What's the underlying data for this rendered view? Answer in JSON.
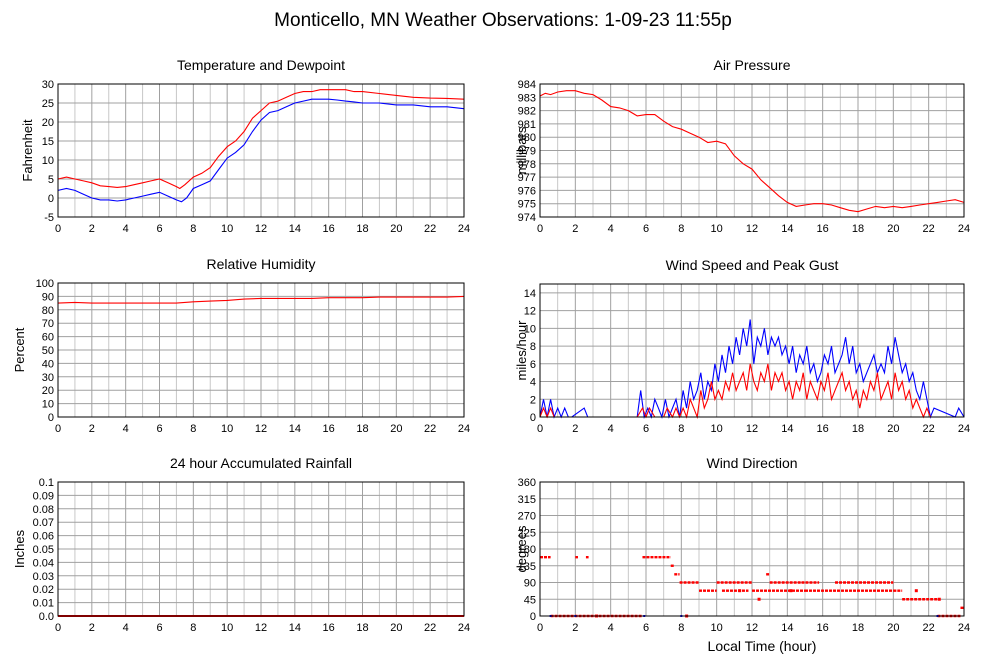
{
  "title": "Monticello, MN Weather Observations: 1-09-23 11:55p",
  "x_axis_label": "Local Time (hour)",
  "colors": {
    "red": "#ff0000",
    "blue": "#0000ff",
    "grid": "#a0a0a0",
    "frame": "#000000"
  },
  "chart_data": [
    {
      "id": "temp",
      "type": "line",
      "title": "Temperature and Dewpoint",
      "xlabel": "",
      "ylabel": "Fahrenheit",
      "xlim": [
        0,
        24
      ],
      "ylim": [
        -5,
        30
      ],
      "xticks": [
        0,
        2,
        4,
        6,
        8,
        10,
        12,
        14,
        16,
        18,
        20,
        22,
        24
      ],
      "yticks": [
        -5,
        0,
        5,
        10,
        15,
        20,
        25,
        30
      ],
      "grid": true,
      "series": [
        {
          "color": "#ff0000",
          "x": [
            0,
            0.5,
            1,
            1.5,
            2,
            2.5,
            3,
            3.5,
            4,
            4.5,
            5,
            5.5,
            6,
            6.5,
            7,
            7.2,
            7.5,
            8,
            8.5,
            9,
            9.5,
            10,
            10.5,
            11,
            11.5,
            12,
            12.5,
            13,
            13.5,
            14,
            14.5,
            15,
            15.5,
            16,
            16.5,
            17,
            17.5,
            18,
            19,
            20,
            21,
            22,
            23,
            24
          ],
          "y": [
            5,
            5.5,
            5,
            4.5,
            4,
            3.2,
            3,
            2.8,
            3,
            3.5,
            4,
            4.5,
            5,
            4,
            3,
            2.5,
            3.5,
            5.5,
            6.5,
            8,
            11,
            13.5,
            15,
            17.5,
            21,
            23,
            25,
            25.5,
            26.5,
            27.5,
            28,
            28,
            28.5,
            28.5,
            28.5,
            28.5,
            28,
            28,
            27.5,
            27,
            26.5,
            26.3,
            26.2,
            26
          ]
        },
        {
          "color": "#0000ff",
          "x": [
            0,
            0.5,
            1,
            1.5,
            2,
            2.5,
            3,
            3.5,
            4,
            4.5,
            5,
            5.5,
            6,
            6.5,
            7,
            7.3,
            7.6,
            8,
            8.5,
            9,
            9.5,
            10,
            10.5,
            11,
            11.5,
            12,
            12.5,
            13,
            13.5,
            14,
            14.5,
            15,
            15.5,
            16,
            16.5,
            17,
            17.5,
            18,
            19,
            20,
            21,
            22,
            23,
            24
          ],
          "y": [
            2,
            2.5,
            2,
            1,
            0,
            -0.5,
            -0.5,
            -0.8,
            -0.5,
            0,
            0.5,
            1,
            1.5,
            0.5,
            -0.5,
            -1,
            0,
            2.5,
            3.5,
            4.5,
            7.5,
            10.5,
            12,
            14,
            17.5,
            20.5,
            22.5,
            23,
            24,
            25,
            25.5,
            26,
            26,
            26,
            25.8,
            25.5,
            25.3,
            25,
            25,
            24.5,
            24.5,
            24,
            24,
            23.5
          ]
        }
      ]
    },
    {
      "id": "pressure",
      "type": "line",
      "title": "Air Pressure",
      "xlabel": "",
      "ylabel": "millibars",
      "xlim": [
        0,
        24
      ],
      "ylim": [
        974,
        984
      ],
      "xticks": [
        0,
        2,
        4,
        6,
        8,
        10,
        12,
        14,
        16,
        18,
        20,
        22,
        24
      ],
      "yticks": [
        974,
        975,
        976,
        977,
        978,
        979,
        980,
        981,
        982,
        983,
        984
      ],
      "grid": true,
      "series": [
        {
          "color": "#ff0000",
          "x": [
            0,
            0.3,
            0.6,
            1,
            1.5,
            2,
            2.5,
            3,
            3.5,
            4,
            4.5,
            5,
            5.5,
            6,
            6.5,
            7,
            7.5,
            8,
            8.5,
            9,
            9.5,
            10,
            10.5,
            11,
            11.5,
            12,
            12.5,
            13,
            13.5,
            14,
            14.5,
            15,
            15.5,
            16,
            16.5,
            17,
            17.5,
            18,
            18.5,
            19,
            19.5,
            20,
            20.5,
            21,
            21.5,
            22,
            22.5,
            23,
            23.5,
            24
          ],
          "y": [
            983.1,
            983.3,
            983.2,
            983.4,
            983.5,
            983.5,
            983.3,
            983.2,
            982.8,
            982.3,
            982.2,
            982,
            981.6,
            981.7,
            981.7,
            981.2,
            980.8,
            980.6,
            980.3,
            980,
            979.6,
            979.7,
            979.5,
            978.6,
            978,
            977.6,
            976.8,
            976.2,
            975.6,
            975.1,
            974.8,
            974.9,
            975,
            975,
            974.9,
            974.7,
            974.5,
            974.4,
            974.6,
            974.8,
            974.7,
            974.8,
            974.7,
            974.8,
            974.9,
            975,
            975.1,
            975.2,
            975.3,
            975.1
          ]
        }
      ]
    },
    {
      "id": "humidity",
      "type": "line",
      "title": "Relative Humidity",
      "xlabel": "",
      "ylabel": "Percent",
      "xlim": [
        0,
        24
      ],
      "ylim": [
        0,
        100
      ],
      "xticks": [
        0,
        2,
        4,
        6,
        8,
        10,
        12,
        14,
        16,
        18,
        20,
        22,
        24
      ],
      "yticks": [
        0,
        10,
        20,
        30,
        40,
        50,
        60,
        70,
        80,
        90,
        100
      ],
      "grid": true,
      "series": [
        {
          "color": "#ff0000",
          "x": [
            0,
            1,
            2,
            3,
            4,
            5,
            6,
            7,
            8,
            9,
            10,
            11,
            12,
            13,
            14,
            15,
            16,
            17,
            18,
            19,
            20,
            21,
            22,
            23,
            24
          ],
          "y": [
            85,
            85.5,
            85,
            85,
            85,
            85,
            85,
            85,
            86,
            86.5,
            87,
            88,
            88.5,
            88.5,
            88.5,
            88.5,
            89,
            89,
            89,
            89.5,
            89.5,
            89.5,
            89.5,
            89.5,
            90
          ]
        }
      ]
    },
    {
      "id": "wind",
      "type": "line",
      "title": "Wind Speed and Peak Gust",
      "xlabel": "",
      "ylabel": "miles/hour",
      "xlim": [
        0,
        24
      ],
      "ylim": [
        0,
        15
      ],
      "xticks": [
        0,
        2,
        4,
        6,
        8,
        10,
        12,
        14,
        16,
        18,
        20,
        22,
        24
      ],
      "yticks": [
        0,
        2,
        4,
        6,
        8,
        10,
        12,
        14
      ],
      "grid": true,
      "series": [
        {
          "color": "#0000ff",
          "x": [
            0,
            0.2,
            0.4,
            0.6,
            0.8,
            1,
            1.2,
            1.4,
            1.6,
            1.8,
            2.5,
            2.7,
            2.9,
            5.5,
            5.7,
            5.9,
            6.1,
            6.3,
            6.5,
            6.7,
            6.9,
            7.1,
            7.3,
            7.5,
            7.7,
            7.9,
            8.1,
            8.3,
            8.5,
            8.7,
            8.9,
            9.1,
            9.3,
            9.5,
            9.7,
            9.9,
            10.1,
            10.3,
            10.5,
            10.7,
            10.9,
            11.1,
            11.3,
            11.5,
            11.7,
            11.9,
            12.1,
            12.3,
            12.5,
            12.7,
            12.9,
            13.1,
            13.3,
            13.5,
            13.7,
            13.9,
            14.1,
            14.3,
            14.5,
            14.7,
            14.9,
            15.1,
            15.3,
            15.5,
            15.7,
            15.9,
            16.1,
            16.3,
            16.5,
            16.7,
            16.9,
            17.1,
            17.3,
            17.5,
            17.7,
            17.9,
            18.1,
            18.3,
            18.5,
            18.7,
            18.9,
            19.1,
            19.3,
            19.5,
            19.7,
            19.9,
            20.1,
            20.3,
            20.5,
            20.7,
            20.9,
            21.1,
            21.3,
            21.5,
            21.7,
            21.9,
            22.1,
            22.3,
            23.5,
            23.7,
            24
          ],
          "y": [
            0,
            2,
            0,
            2,
            0,
            1,
            0,
            1,
            0,
            0,
            1,
            0,
            0,
            0,
            3,
            0,
            1,
            0,
            2,
            1,
            0,
            2,
            0,
            1,
            2,
            0,
            3,
            1,
            4,
            2,
            3,
            5,
            2,
            4,
            3,
            6,
            4,
            7,
            5,
            8,
            6,
            9,
            7,
            10,
            8,
            11,
            6,
            9,
            8,
            10,
            7,
            9,
            8,
            9,
            7,
            8,
            6,
            8,
            5,
            7,
            6,
            8,
            5,
            6,
            4,
            5,
            7,
            6,
            8,
            5,
            6,
            7,
            9,
            6,
            8,
            5,
            6,
            4,
            5,
            6,
            7,
            5,
            6,
            5,
            8,
            6,
            9,
            7,
            5,
            6,
            4,
            5,
            3,
            2,
            4,
            2,
            0,
            1,
            0,
            1,
            0
          ]
        },
        {
          "color": "#ff0000",
          "x": [
            0,
            0.2,
            0.4,
            0.6,
            0.8,
            1,
            5.5,
            5.8,
            6.0,
            6.2,
            6.5,
            6.8,
            7.0,
            7.2,
            7.5,
            7.7,
            7.9,
            8.1,
            8.3,
            8.5,
            8.7,
            8.9,
            9.1,
            9.3,
            9.5,
            9.7,
            9.9,
            10.1,
            10.3,
            10.5,
            10.7,
            10.9,
            11.1,
            11.3,
            11.5,
            11.7,
            11.9,
            12.1,
            12.3,
            12.5,
            12.7,
            12.9,
            13.1,
            13.3,
            13.5,
            13.7,
            13.9,
            14.1,
            14.3,
            14.5,
            14.7,
            14.9,
            15.1,
            15.3,
            15.5,
            15.7,
            15.9,
            16.1,
            16.3,
            16.5,
            16.7,
            16.9,
            17.1,
            17.3,
            17.5,
            17.7,
            17.9,
            18.1,
            18.3,
            18.5,
            18.7,
            18.9,
            19.1,
            19.3,
            19.5,
            19.7,
            19.9,
            20.1,
            20.3,
            20.5,
            20.7,
            20.9,
            21.1,
            21.3,
            21.5,
            21.7,
            21.9,
            22.1,
            22.3,
            24
          ],
          "y": [
            0,
            1,
            0,
            1,
            0,
            0,
            0,
            1,
            0,
            1,
            0,
            0,
            0,
            1,
            0,
            1,
            0,
            1,
            0,
            2,
            1,
            0,
            3,
            1,
            2,
            4,
            2,
            3,
            2,
            4,
            3,
            5,
            3,
            4,
            5,
            3,
            6,
            4,
            3,
            5,
            4,
            6,
            3,
            5,
            4,
            5,
            3,
            4,
            2,
            4,
            3,
            5,
            2,
            4,
            3,
            2,
            4,
            3,
            5,
            2,
            3,
            4,
            5,
            3,
            4,
            2,
            3,
            1,
            3,
            2,
            4,
            3,
            5,
            2,
            3,
            4,
            2,
            5,
            3,
            4,
            2,
            3,
            1,
            2,
            1,
            0,
            1,
            0,
            0,
            0
          ]
        }
      ]
    },
    {
      "id": "rain",
      "type": "line",
      "title": "24 hour Accumulated Rainfall",
      "xlabel": "",
      "ylabel": "Inches",
      "xlim": [
        0,
        24
      ],
      "ylim": [
        0,
        0.1
      ],
      "xticks": [
        0,
        2,
        4,
        6,
        8,
        10,
        12,
        14,
        16,
        18,
        20,
        22,
        24
      ],
      "yticks": [
        0.0,
        0.01,
        0.02,
        0.03,
        0.04,
        0.05,
        0.06,
        0.07,
        0.08,
        0.09,
        0.1
      ],
      "ytick_labels": [
        "0.0",
        "0.01",
        "0.02",
        "0.03",
        "0.04",
        "0.05",
        "0.06",
        "0.07",
        "0.08",
        "0.09",
        "0.1"
      ],
      "grid": true,
      "series": [
        {
          "color": "#ff0000",
          "x": [
            0,
            24
          ],
          "y": [
            0,
            0
          ]
        }
      ]
    },
    {
      "id": "direction",
      "type": "scatter",
      "title": "Wind Direction",
      "xlabel": "",
      "ylabel": "degrees",
      "xlim": [
        0,
        24
      ],
      "ylim": [
        0,
        360
      ],
      "xticks": [
        0,
        2,
        4,
        6,
        8,
        10,
        12,
        14,
        16,
        18,
        20,
        22,
        24
      ],
      "yticks": [
        0,
        45,
        90,
        135,
        180,
        225,
        270,
        315,
        360
      ],
      "grid": true,
      "segments": [
        {
          "x0": 0.0,
          "x1": 0.6,
          "y": 158
        },
        {
          "x0": 2.0,
          "x1": 2.15,
          "y": 158
        },
        {
          "x0": 2.6,
          "x1": 2.75,
          "y": 158
        },
        {
          "x0": 0.6,
          "x1": 5.8,
          "y": 0
        },
        {
          "x0": 5.8,
          "x1": 7.4,
          "y": 158
        },
        {
          "x0": 7.4,
          "x1": 7.6,
          "y": 135
        },
        {
          "x0": 7.6,
          "x1": 7.9,
          "y": 112
        },
        {
          "x0": 7.9,
          "x1": 9.0,
          "y": 90
        },
        {
          "x0": 9.0,
          "x1": 10.0,
          "y": 68
        },
        {
          "x0": 10.0,
          "x1": 12.0,
          "y": 90
        },
        {
          "x0": 10.3,
          "x1": 11.8,
          "y": 68
        },
        {
          "x0": 12.0,
          "x1": 15.0,
          "y": 68
        },
        {
          "x0": 12.8,
          "x1": 13.0,
          "y": 112
        },
        {
          "x0": 13.0,
          "x1": 14.8,
          "y": 90
        },
        {
          "x0": 14.8,
          "x1": 15.8,
          "y": 90
        },
        {
          "x0": 15.0,
          "x1": 20.0,
          "y": 68
        },
        {
          "x0": 16.7,
          "x1": 20.0,
          "y": 90
        },
        {
          "x0": 20.5,
          "x1": 22.5,
          "y": 45
        },
        {
          "x0": 20.0,
          "x1": 20.5,
          "y": 68
        },
        {
          "x0": 22.5,
          "x1": 23.8,
          "y": 0
        },
        {
          "x0": 23.8,
          "x1": 24,
          "y": 22
        }
      ],
      "points": [
        {
          "x": 3.2,
          "y": 0
        },
        {
          "x": 8.3,
          "y": 0
        },
        {
          "x": 12.4,
          "y": 45
        },
        {
          "x": 11.3,
          "y": 68
        },
        {
          "x": 14.2,
          "y": 68
        },
        {
          "x": 21.3,
          "y": 68
        },
        {
          "x": 22.6,
          "y": 45
        }
      ],
      "blue_points": [
        {
          "x": 0.6,
          "y": 0
        },
        {
          "x": 2.0,
          "y": 0
        },
        {
          "x": 5.9,
          "y": 0
        },
        {
          "x": 8.0,
          "y": 0
        },
        {
          "x": 22.5,
          "y": 0
        }
      ]
    }
  ]
}
